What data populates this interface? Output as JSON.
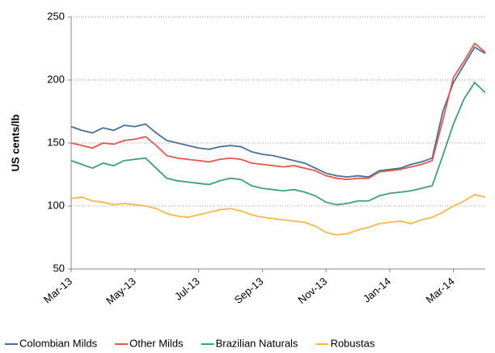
{
  "chart_data": {
    "type": "line",
    "y_label": "US cents/lb",
    "categories": [
      "Mar-13",
      null,
      null,
      null,
      null,
      null,
      "May-13",
      null,
      null,
      null,
      null,
      null,
      "Jul-13",
      null,
      null,
      null,
      null,
      null,
      "Sep-13",
      null,
      null,
      null,
      null,
      null,
      "Nov-13",
      null,
      null,
      null,
      null,
      null,
      "Jan-14",
      null,
      null,
      null,
      null,
      null,
      "Mar-14",
      null,
      null,
      null
    ],
    "ylim": [
      50,
      250
    ],
    "yticks": [
      50,
      100,
      150,
      200,
      250
    ],
    "grid": true,
    "legend": "bottom",
    "series": [
      {
        "name": "Colombian Milds",
        "color": "#45729b",
        "values": [
          163,
          160,
          158,
          162,
          160,
          164,
          163,
          165,
          158,
          152,
          150,
          148,
          146,
          145,
          147,
          148,
          147,
          143,
          141,
          140,
          138,
          136,
          134,
          130,
          126,
          124,
          123,
          124,
          123,
          128,
          129,
          130,
          133,
          135,
          138,
          175,
          198,
          212,
          226,
          221
        ]
      },
      {
        "name": "Other Milds",
        "color": "#e8564b",
        "values": [
          150,
          148,
          146,
          150,
          149,
          152,
          153,
          155,
          148,
          140,
          138,
          137,
          136,
          135,
          137,
          138,
          137,
          134,
          133,
          132,
          131,
          132,
          130,
          128,
          124,
          122,
          121,
          122,
          122,
          127,
          128,
          129,
          131,
          133,
          136,
          168,
          202,
          215,
          229,
          222
        ]
      },
      {
        "name": "Brazilian Naturals",
        "color": "#3aa274",
        "values": [
          136,
          133,
          130,
          134,
          132,
          136,
          137,
          138,
          130,
          122,
          120,
          119,
          118,
          117,
          120,
          122,
          121,
          116,
          114,
          113,
          112,
          113,
          111,
          108,
          103,
          101,
          102,
          104,
          104,
          108,
          110,
          111,
          112,
          114,
          116,
          140,
          165,
          185,
          198,
          190
        ]
      },
      {
        "name": "Robustas",
        "color": "#f5b94a",
        "values": [
          106,
          107,
          104,
          103,
          101,
          102,
          101,
          100,
          98,
          94,
          92,
          91,
          93,
          95,
          97,
          98,
          96,
          93,
          91,
          90,
          89,
          88,
          87,
          84,
          79,
          77,
          78,
          81,
          83,
          86,
          87,
          88,
          86,
          89,
          91,
          95,
          100,
          104,
          109,
          107
        ]
      }
    ]
  }
}
